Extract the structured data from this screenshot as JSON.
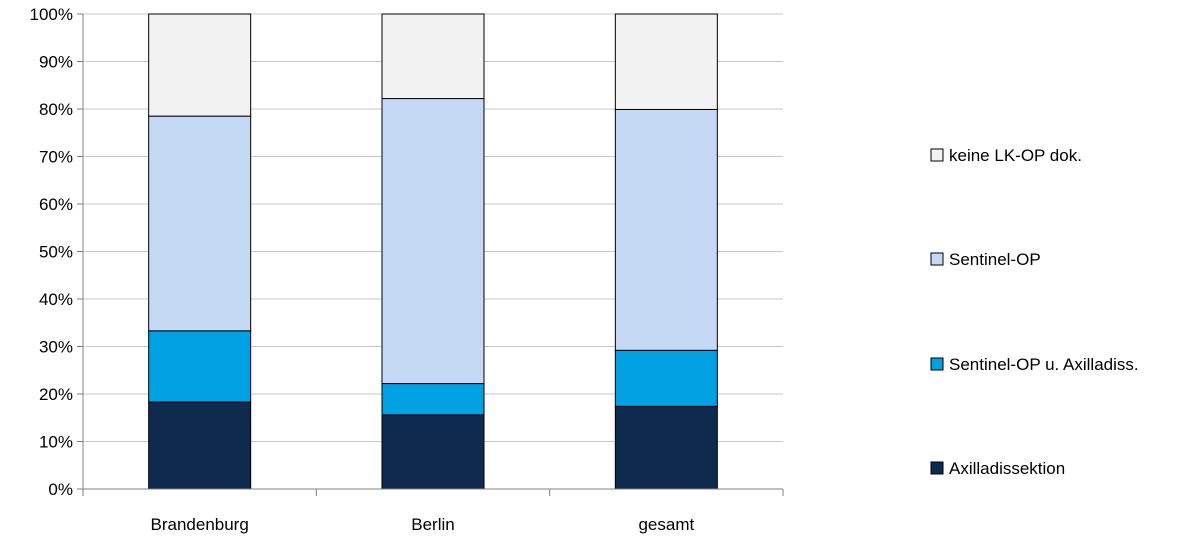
{
  "chart_data": {
    "type": "bar",
    "stacked": true,
    "percent_stacked": true,
    "categories": [
      "Brandenburg",
      "Berlin",
      "gesamt"
    ],
    "series": [
      {
        "name": "Axilladissektion",
        "values": [
          18.3,
          15.6,
          17.4
        ],
        "color": "#0f2a4f"
      },
      {
        "name": "Sentinel-OP u. Axilladiss.",
        "values": [
          15.0,
          6.6,
          11.8
        ],
        "color": "#00a0e3"
      },
      {
        "name": "Sentinel-OP",
        "values": [
          45.2,
          60.0,
          50.7
        ],
        "color": "#c5d9f5"
      },
      {
        "name": "keine LK-OP dok.",
        "values": [
          21.5,
          17.8,
          20.1
        ],
        "color": "#f2f2f2"
      }
    ],
    "ylim": [
      0,
      100
    ],
    "yticks": [
      "0%",
      "10%",
      "20%",
      "30%",
      "40%",
      "50%",
      "60%",
      "70%",
      "80%",
      "90%",
      "100%"
    ],
    "grid": true,
    "legend_position": "right"
  }
}
